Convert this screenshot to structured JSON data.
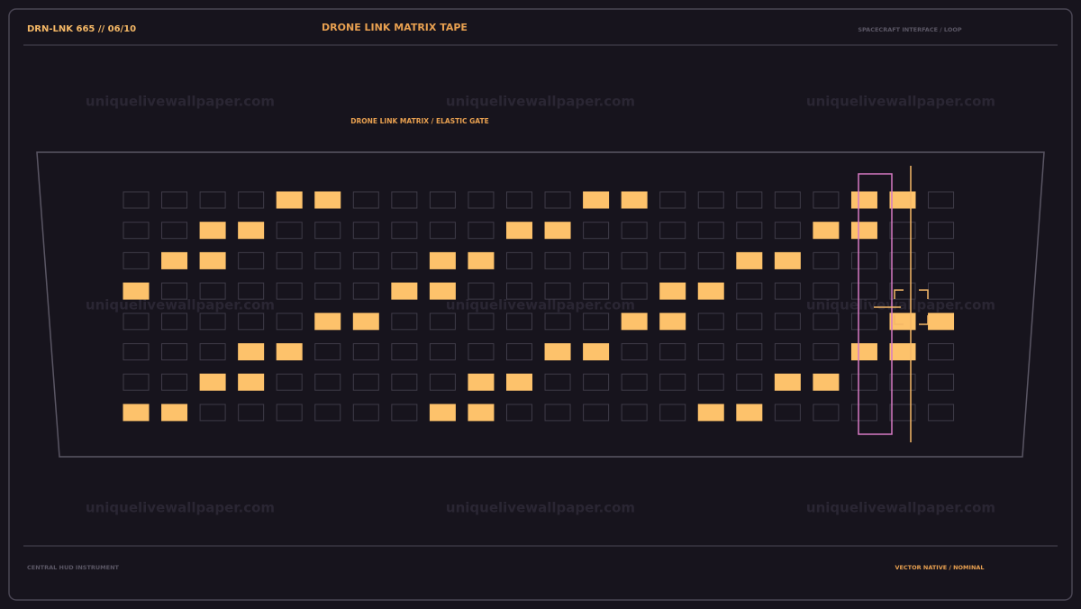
{
  "header": {
    "id": "DRN-LNK 665 // 06/10",
    "title": "DRONE LINK MATRIX TAPE",
    "context": "SPACECRAFT INTERFACE / LOOP"
  },
  "panel": {
    "subtitle": "DRONE LINK MATRIX / ELASTIC GATE"
  },
  "matrix": {
    "rows": [
      [
        0,
        0,
        0,
        0,
        1,
        1,
        0,
        0,
        0,
        0,
        0,
        0,
        1,
        1,
        0,
        0,
        0,
        0,
        0,
        1,
        1,
        0
      ],
      [
        0,
        0,
        1,
        1,
        0,
        0,
        0,
        0,
        0,
        0,
        1,
        1,
        0,
        0,
        0,
        0,
        0,
        0,
        1,
        1,
        0,
        0
      ],
      [
        0,
        1,
        1,
        0,
        0,
        0,
        0,
        0,
        1,
        1,
        0,
        0,
        0,
        0,
        0,
        0,
        1,
        1,
        0,
        0,
        0,
        0
      ],
      [
        1,
        0,
        0,
        0,
        0,
        0,
        0,
        1,
        1,
        0,
        0,
        0,
        0,
        0,
        1,
        1,
        0,
        0,
        0,
        0,
        0,
        0
      ],
      [
        0,
        0,
        0,
        0,
        0,
        1,
        1,
        0,
        0,
        0,
        0,
        0,
        0,
        1,
        1,
        0,
        0,
        0,
        0,
        0,
        1,
        1
      ],
      [
        0,
        0,
        0,
        1,
        1,
        0,
        0,
        0,
        0,
        0,
        0,
        1,
        1,
        0,
        0,
        0,
        0,
        0,
        0,
        1,
        1,
        0
      ],
      [
        0,
        0,
        1,
        1,
        0,
        0,
        0,
        0,
        0,
        1,
        1,
        0,
        0,
        0,
        0,
        0,
        0,
        1,
        1,
        0,
        0,
        0
      ],
      [
        1,
        1,
        0,
        0,
        0,
        0,
        0,
        0,
        1,
        1,
        0,
        0,
        0,
        0,
        0,
        1,
        1,
        0,
        0,
        0,
        0,
        0
      ]
    ]
  },
  "watermark": "uniquelivewallpaper.com",
  "footer": {
    "left": "CENTRAL HUD INSTRUMENT",
    "right": "VECTOR NATIVE / NOMINAL"
  }
}
